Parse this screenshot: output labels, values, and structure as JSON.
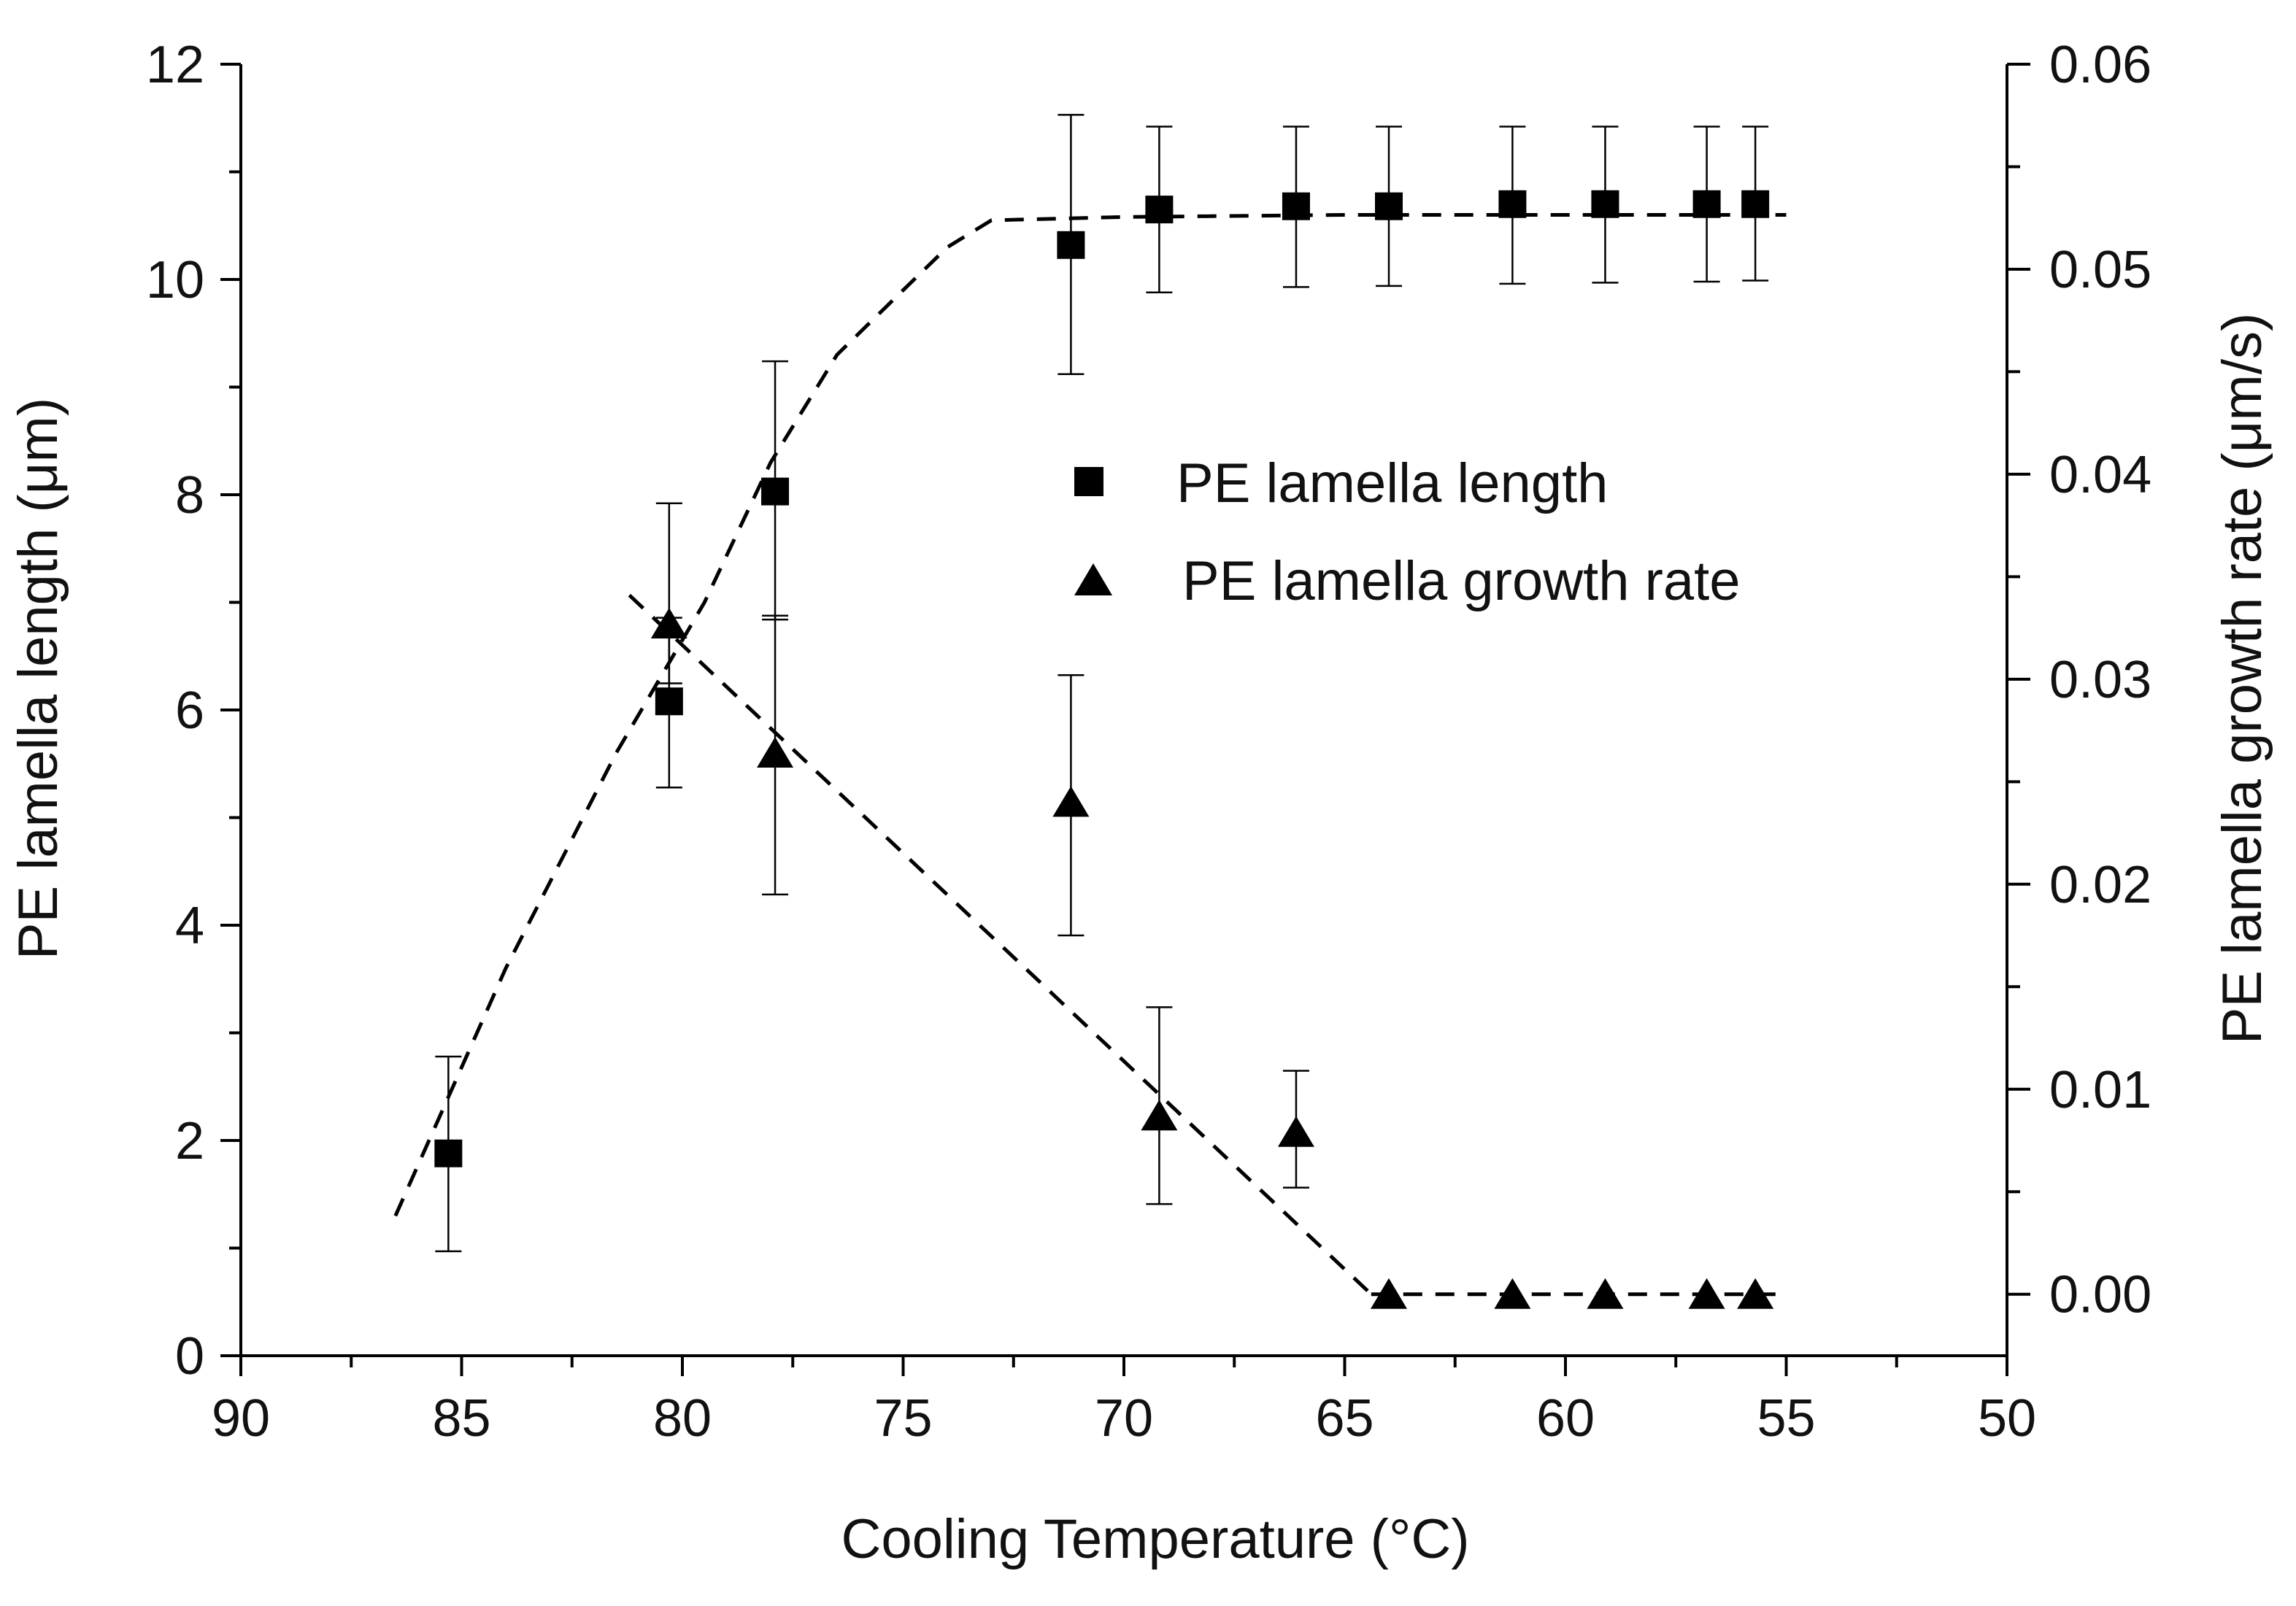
{
  "chart_data": {
    "type": "scatter",
    "title": "",
    "xlabel": "Cooling Temperature (°C)",
    "ylabel": "PE lamella length (μm)",
    "y2label": "PE lamella growth rate (μm/s)",
    "xlim": [
      90,
      50
    ],
    "ylim": [
      0,
      12
    ],
    "y2lim": [
      -0.003,
      0.06
    ],
    "x_ticks": [
      "90",
      "85",
      "80",
      "75",
      "70",
      "65",
      "60",
      "55",
      "50"
    ],
    "y_ticks": [
      "0",
      "2",
      "4",
      "6",
      "8",
      "10",
      "12"
    ],
    "y2_ticks": [
      "0.00",
      "0.01",
      "0.02",
      "0.03",
      "0.04",
      "0.05",
      "0.06"
    ],
    "legend_position": "center-right",
    "series": [
      {
        "name": "PE lamella length",
        "axis": "left",
        "marker": "square",
        "x": [
          85.3,
          80.3,
          77.9,
          71.2,
          69.2,
          66.1,
          64.0,
          61.2,
          59.1,
          56.8,
          55.7
        ],
        "y": [
          1.88,
          6.08,
          8.03,
          10.32,
          10.65,
          10.68,
          10.68,
          10.7,
          10.7,
          10.7,
          10.7
        ],
        "err_lo": [
          0.97,
          5.28,
          6.84,
          9.12,
          9.88,
          9.93,
          9.94,
          9.96,
          9.97,
          9.98,
          9.99
        ],
        "err_hi": [
          2.78,
          7.92,
          9.24,
          11.53,
          11.42,
          11.42,
          11.42,
          11.42,
          11.42,
          11.42,
          11.42
        ]
      },
      {
        "name": "PE lamella growth rate",
        "axis": "right",
        "marker": "triangle",
        "x": [
          80.3,
          77.9,
          71.2,
          69.2,
          66.1,
          64.0,
          61.2,
          59.1,
          56.8,
          55.7
        ],
        "y": [
          0.0327,
          0.0264,
          0.024,
          0.0087,
          0.0079,
          0.0,
          0.0,
          0.0,
          0.0,
          0.0
        ],
        "err_lo": [
          0.0298,
          0.0195,
          0.0175,
          0.0044,
          0.0052,
          0.0,
          0.0,
          0.0,
          0.0,
          0.0
        ],
        "err_hi": [
          0.033,
          0.0331,
          0.0302,
          0.014,
          0.0109,
          0.0,
          0.0,
          0.0,
          0.0,
          0.0
        ]
      }
    ],
    "fit_lines": [
      {
        "name": "length trend",
        "axis": "left",
        "x": [
          86.5,
          84.0,
          81.5,
          79.5,
          78.0,
          76.5,
          75.0,
          74.0,
          73.0,
          70.0,
          65.0,
          60.0,
          55.0
        ],
        "y": [
          1.3,
          3.6,
          5.6,
          7.0,
          8.3,
          9.3,
          9.9,
          10.3,
          10.55,
          10.58,
          10.6,
          10.6,
          10.6
        ]
      },
      {
        "name": "growth rate trend",
        "axis": "right",
        "x": [
          81.2,
          64.4
        ],
        "y": [
          0.0341,
          0.0
        ]
      },
      {
        "name": "growth rate plateau",
        "axis": "right",
        "x": [
          64.4,
          55.0
        ],
        "y": [
          0.0,
          0.0
        ]
      }
    ]
  }
}
